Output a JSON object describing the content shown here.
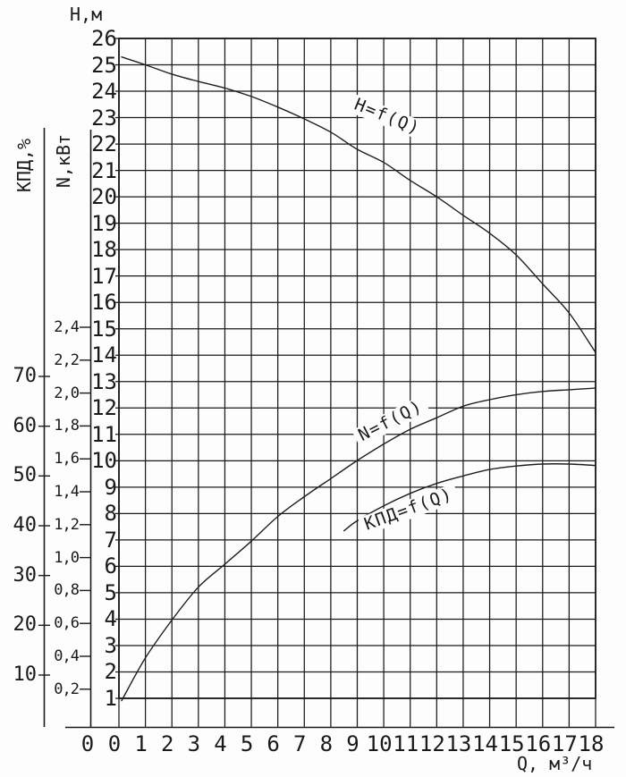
{
  "chart_data": {
    "type": "line",
    "title": "",
    "grid": true,
    "x_axis": {
      "label": "Q, м³/ч",
      "ticks": [
        "0",
        "1",
        "2",
        "3",
        "4",
        "5",
        "6",
        "7",
        "8",
        "9",
        "10",
        "11",
        "12",
        "13",
        "14",
        "15",
        "16",
        "17",
        "18"
      ],
      "range": [
        0,
        18
      ],
      "origin_zero_label": "0"
    },
    "axes": {
      "H": {
        "label": "Н,м",
        "ticks": [
          "26",
          "25",
          "24",
          "23",
          "22",
          "21",
          "20",
          "19",
          "18",
          "17",
          "16",
          "15",
          "14",
          "13",
          "12",
          "11",
          "10",
          "9",
          "8",
          "7",
          "6",
          "5",
          "4",
          "3",
          "2",
          "1"
        ],
        "range": [
          1,
          26
        ]
      },
      "N": {
        "label": "N,кВт",
        "ticks": [
          "2,4",
          "2,2",
          "2,0",
          "1,8",
          "1,6",
          "1,4",
          "1,2",
          "1,0",
          "0,8",
          "0,6",
          "0,4",
          "0,2"
        ],
        "range": [
          0.2,
          2.4
        ]
      },
      "KPD": {
        "label": "КПД,%",
        "ticks": [
          "70",
          "60",
          "50",
          "40",
          "30",
          "20",
          "10"
        ],
        "range": [
          10,
          70
        ]
      }
    },
    "series": [
      {
        "name": "H=f(Q)",
        "axis": "H",
        "points": [
          [
            0.1,
            25.3
          ],
          [
            1,
            25.0
          ],
          [
            2,
            24.65
          ],
          [
            3,
            24.37
          ],
          [
            4,
            24.12
          ],
          [
            5,
            23.8
          ],
          [
            6,
            23.4
          ],
          [
            7,
            22.95
          ],
          [
            8,
            22.45
          ],
          [
            9,
            21.8
          ],
          [
            10,
            21.3
          ],
          [
            11,
            20.62
          ],
          [
            12,
            20.0
          ],
          [
            13,
            19.3
          ],
          [
            14,
            18.62
          ],
          [
            15,
            17.8
          ],
          [
            16,
            16.7
          ],
          [
            17,
            15.6
          ],
          [
            18,
            14.1
          ]
        ]
      },
      {
        "name": "N=f(Q)",
        "axis": "N",
        "points": [
          [
            0.1,
            0.13
          ],
          [
            1,
            0.39
          ],
          [
            2,
            0.62
          ],
          [
            3,
            0.82
          ],
          [
            4,
            0.96
          ],
          [
            5,
            1.1
          ],
          [
            6,
            1.25
          ],
          [
            7,
            1.37
          ],
          [
            8,
            1.48
          ],
          [
            9,
            1.59
          ],
          [
            10,
            1.69
          ],
          [
            11,
            1.78
          ],
          [
            12,
            1.85
          ],
          [
            13,
            1.92
          ],
          [
            14,
            1.96
          ],
          [
            15,
            1.99
          ],
          [
            16,
            2.01
          ],
          [
            17,
            2.02
          ],
          [
            18,
            2.03
          ]
        ]
      },
      {
        "name": "КПД=f(Q)",
        "axis": "KPD",
        "points": [
          [
            8.5,
            39
          ],
          [
            9,
            41
          ],
          [
            10,
            44
          ],
          [
            11,
            46.5
          ],
          [
            12,
            48.5
          ],
          [
            13,
            50
          ],
          [
            14,
            51.3
          ],
          [
            15,
            52
          ],
          [
            16,
            52.4
          ],
          [
            17,
            52.4
          ],
          [
            18,
            52.1
          ]
        ]
      }
    ]
  }
}
